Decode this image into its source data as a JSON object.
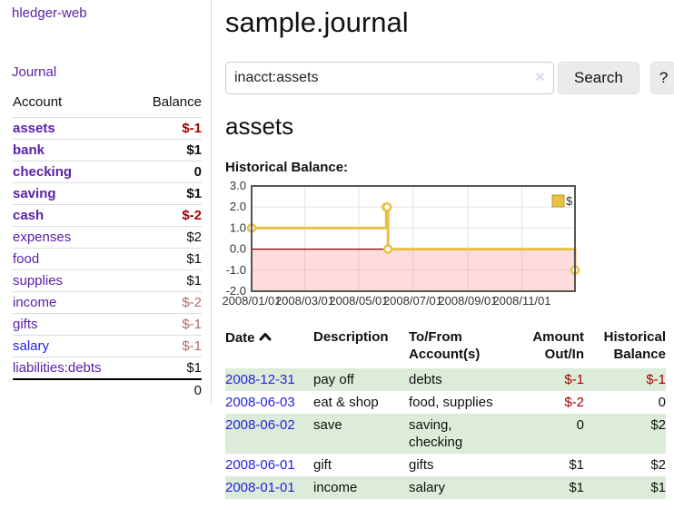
{
  "palette": {
    "link_purple": "#5b21a8",
    "link_blue": "#2323dd",
    "negative": "#a40000",
    "negative_soft": "#b36a66",
    "row_green": "#ddecd8"
  },
  "icons": {
    "clear": "✕",
    "sort": "chevron-up-icon",
    "legend_swatch": "yellow-square"
  },
  "sidebar": {
    "app_title": "hledger-web",
    "journal_link": "Journal",
    "accounts_table": {
      "headers": [
        "Account",
        "Balance"
      ],
      "accounts": [
        {
          "name": "assets",
          "balance": "$-1",
          "level_class": "lvl1",
          "row_class": "bold",
          "name_class": "purple",
          "balance_class": "neg"
        },
        {
          "name": "bank",
          "balance": "$1",
          "level_class": "lvl2",
          "row_class": "bold",
          "name_class": "purple",
          "balance_class": "pos"
        },
        {
          "name": "checking",
          "balance": "0",
          "level_class": "lvl3",
          "row_class": "bold",
          "name_class": "purple",
          "balance_class": "pos"
        },
        {
          "name": "saving",
          "balance": "$1",
          "level_class": "lvl3",
          "row_class": "bold",
          "name_class": "purple",
          "balance_class": "pos"
        },
        {
          "name": "cash",
          "balance": "$-2",
          "level_class": "lvl2",
          "row_class": "bold",
          "name_class": "purple",
          "balance_class": "neg"
        },
        {
          "name": "expenses",
          "balance": "$2",
          "level_class": "lvl1",
          "row_class": "",
          "name_class": "purple",
          "balance_class": "pos"
        },
        {
          "name": "food",
          "balance": "$1",
          "level_class": "lvl2",
          "row_class": "",
          "name_class": "purple",
          "balance_class": "pos"
        },
        {
          "name": "supplies",
          "balance": "$1",
          "level_class": "lvl2",
          "row_class": "",
          "name_class": "purple",
          "balance_class": "pos"
        },
        {
          "name": "income",
          "balance": "$-2",
          "level_class": "lvl1",
          "row_class": "",
          "name_class": "purple",
          "balance_class": "neg-soft"
        },
        {
          "name": "gifts",
          "balance": "$-1",
          "level_class": "lvl2",
          "row_class": "",
          "name_class": "purple",
          "balance_class": "neg-soft"
        },
        {
          "name": "salary",
          "balance": "$-1",
          "level_class": "lvl2",
          "row_class": "",
          "name_class": "blue",
          "balance_class": "neg-soft"
        },
        {
          "name": "liabilities:debts",
          "balance": "$1",
          "level_class": "lvl1",
          "row_class": "",
          "name_class": "purple",
          "balance_class": "pos"
        }
      ],
      "total": "0"
    }
  },
  "main": {
    "title": "sample.journal",
    "account_heading": "assets",
    "chart_label": "Historical Balance:"
  },
  "search": {
    "query": "inacct:assets",
    "button_label": "Search",
    "help_label": "?"
  },
  "chart_data": {
    "type": "line",
    "title": "Historical Balance:",
    "step": true,
    "series": [
      {
        "name": "$",
        "points": [
          [
            "2008-01-01",
            1
          ],
          [
            "2008-06-01",
            2
          ],
          [
            "2008-06-02",
            2
          ],
          [
            "2008-06-03",
            0
          ],
          [
            "2008-12-31",
            -1
          ]
        ]
      }
    ],
    "xlim": [
      "2008-01-01",
      "2008-12-31"
    ],
    "ylim": [
      -2,
      3
    ],
    "y_ticks": [
      {
        "v": 3,
        "label": "3.0"
      },
      {
        "v": 2,
        "label": "2.0"
      },
      {
        "v": 1,
        "label": "1.0"
      },
      {
        "v": 0,
        "label": "0.0"
      },
      {
        "v": -1,
        "label": "-1.0"
      },
      {
        "v": -2,
        "label": "-2.0"
      }
    ],
    "x_ticks": [
      {
        "date": "2008-01-01",
        "label": "2008/01/01"
      },
      {
        "date": "2008-03-01",
        "label": "2008/03/01"
      },
      {
        "date": "2008-05-01",
        "label": "2008/05/01"
      },
      {
        "date": "2008-07-01",
        "label": "2008/07/01"
      },
      {
        "date": "2008-09-01",
        "label": "2008/09/01"
      },
      {
        "date": "2008-11-01",
        "label": "2008/11/01"
      }
    ],
    "legend_position": "top-right",
    "grid": true,
    "line_color": "#e7c242",
    "marker_fill": "#ffffff",
    "negative_fill": "rgba(252,130,130,0.28)",
    "zero_line_color": "#8b0000",
    "border_color": "#555555"
  },
  "register": {
    "headers": {
      "date": "Date",
      "description": "Description",
      "accounts": "To/From Account(s)",
      "amount": "Amount Out/In",
      "balance": "Historical Balance"
    },
    "rows": [
      {
        "date": "2008-12-31",
        "description": "pay off",
        "accounts": "debts",
        "amount": "$-1",
        "amount_class": "neg",
        "balance": "$-1",
        "balance_class": "neg"
      },
      {
        "date": "2008-06-03",
        "description": "eat & shop",
        "accounts": "food, supplies",
        "amount": "$-2",
        "amount_class": "neg",
        "balance": "0",
        "balance_class": "pos"
      },
      {
        "date": "2008-06-02",
        "description": "save",
        "accounts": "saving, checking",
        "amount": "0",
        "amount_class": "pos",
        "balance": "$2",
        "balance_class": "pos"
      },
      {
        "date": "2008-06-01",
        "description": "gift",
        "accounts": "gifts",
        "amount": "$1",
        "amount_class": "pos",
        "balance": "$2",
        "balance_class": "pos"
      },
      {
        "date": "2008-01-01",
        "description": "income",
        "accounts": "salary",
        "amount": "$1",
        "amount_class": "pos",
        "balance": "$1",
        "balance_class": "pos"
      }
    ]
  }
}
